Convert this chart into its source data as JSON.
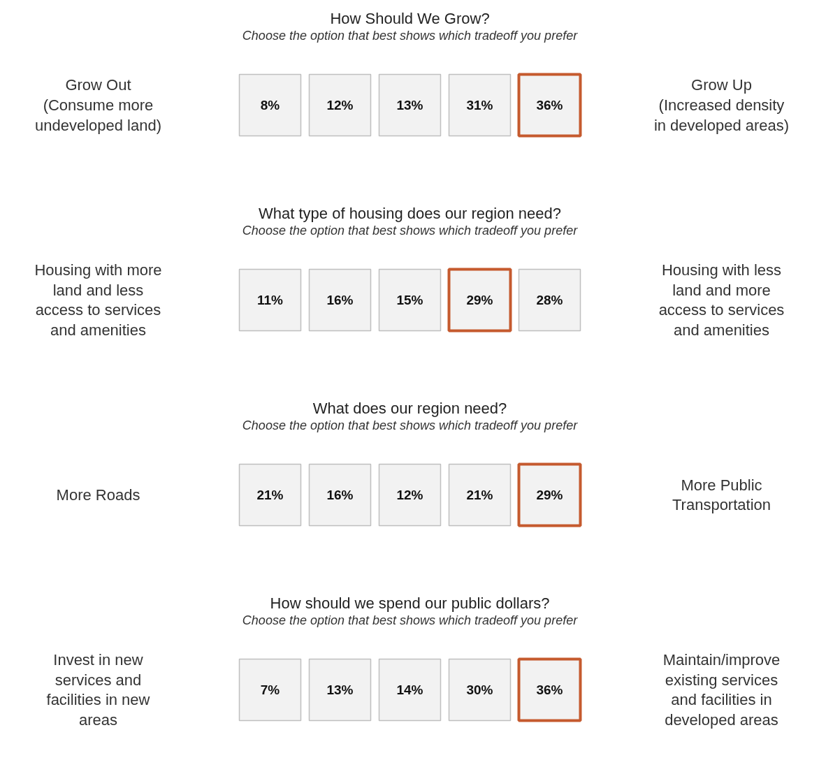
{
  "chart_data": [
    {
      "type": "other",
      "title": "How Should We Grow?",
      "subtitle": "Choose the option that best shows which tradeoff you prefer",
      "categories": [
        null,
        null,
        null,
        null,
        null
      ],
      "values": [
        8,
        12,
        13,
        31,
        36
      ],
      "value_labels": [
        "8%",
        "12%",
        "13%",
        "31%",
        "36%"
      ],
      "colors": [
        "#bfbfbf",
        "#bfbfbf",
        "#bfbfbf",
        "#bfbfbf",
        "#c55a2e"
      ],
      "annotations": [
        "Grow Out\n(Consume more\nundeveloped land)",
        "Grow Up\n(Increased density\nin developed areas)"
      ]
    },
    {
      "type": "other",
      "title": "What type of housing does our region need?",
      "subtitle": "Choose the option that best shows which tradeoff you prefer",
      "categories": [
        null,
        null,
        null,
        null,
        null
      ],
      "values": [
        11,
        16,
        15,
        29,
        28
      ],
      "value_labels": [
        "11%",
        "16%",
        "15%",
        "29%",
        "28%"
      ],
      "colors": [
        "#bfbfbf",
        "#bfbfbf",
        "#bfbfbf",
        "#c55a2e",
        "#bfbfbf"
      ],
      "annotations": [
        "Housing with more\nland and less\naccess to services\nand amenities",
        "Housing with less\nland and more\naccess to services\nand amenities"
      ]
    },
    {
      "type": "other",
      "title": "What does our region need?",
      "subtitle": "Choose the option that best shows which tradeoff you prefer",
      "categories": [
        null,
        null,
        null,
        null,
        null
      ],
      "values": [
        21,
        16,
        12,
        21,
        29
      ],
      "value_labels": [
        "21%",
        "16%",
        "12%",
        "21%",
        "29%"
      ],
      "colors": [
        "#bfbfbf",
        "#bfbfbf",
        "#bfbfbf",
        "#bfbfbf",
        "#c55a2e"
      ],
      "annotations": [
        "More Roads",
        "More Public\nTransportation"
      ]
    },
    {
      "type": "other",
      "title": "How should we spend our public dollars?",
      "subtitle": "Choose the option that best shows which tradeoff you prefer",
      "categories": [
        null,
        null,
        null,
        null,
        null
      ],
      "values": [
        7,
        13,
        14,
        30,
        36
      ],
      "value_labels": [
        "7%",
        "13%",
        "14%",
        "30%",
        "36%"
      ],
      "colors": [
        "#bfbfbf",
        "#bfbfbf",
        "#bfbfbf",
        "#bfbfbf",
        "#c55a2e"
      ],
      "annotations": [
        "Invest in new\nservices and\nfacilities in new\nareas",
        "Maintain/improve\nexisting services\nand facilities in\ndeveloped areas"
      ]
    }
  ]
}
